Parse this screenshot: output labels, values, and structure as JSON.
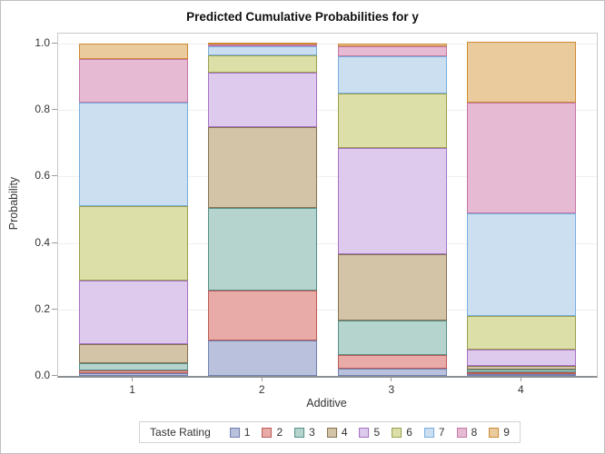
{
  "title": "Predicted Cumulative Probabilities for y",
  "x_axis": {
    "label": "Additive",
    "ticks": [
      "1",
      "2",
      "3",
      "4"
    ]
  },
  "y_axis": {
    "label": "Probability",
    "ticks": [
      "1.0",
      "0.8",
      "0.6",
      "0.4",
      "0.2",
      "0.0"
    ]
  },
  "legend": {
    "title": "Taste Rating"
  },
  "chart_data": {
    "type": "bar",
    "stacked": true,
    "title": "Predicted Cumulative Probabilities for y",
    "xlabel": "Additive",
    "ylabel": "Probability",
    "ylim": [
      0,
      1
    ],
    "grid": true,
    "legend_title": "Taste Rating",
    "legend_position": "bottom",
    "categories": [
      "1",
      "2",
      "3",
      "4"
    ],
    "series": [
      {
        "name": "1",
        "fill": "#B9C1DC",
        "border": "#7281B2",
        "values": [
          0.007,
          0.106,
          0.021,
          0.002
        ]
      },
      {
        "name": "2",
        "fill": "#E9ABA8",
        "border": "#BC5C55",
        "values": [
          0.01,
          0.15,
          0.041,
          0.003
        ]
      },
      {
        "name": "3",
        "fill": "#B6D4CE",
        "border": "#578F88",
        "values": [
          0.021,
          0.25,
          0.104,
          0.007
        ]
      },
      {
        "name": "4",
        "fill": "#D3C3A7",
        "border": "#867352",
        "values": [
          0.059,
          0.244,
          0.201,
          0.011
        ]
      },
      {
        "name": "5",
        "fill": "#DDCAEC",
        "border": "#A672C6",
        "values": [
          0.19,
          0.164,
          0.319,
          0.051
        ]
      },
      {
        "name": "6",
        "fill": "#DCDFA8",
        "border": "#9BA04E",
        "values": [
          0.224,
          0.051,
          0.164,
          0.101
        ]
      },
      {
        "name": "7",
        "fill": "#CBDFF1",
        "border": "#79AEDE",
        "values": [
          0.311,
          0.026,
          0.111,
          0.308
        ]
      },
      {
        "name": "8",
        "fill": "#E6BAD2",
        "border": "#C377A6",
        "values": [
          0.132,
          0.006,
          0.032,
          0.333
        ]
      },
      {
        "name": "9",
        "fill": "#EACB9D",
        "border": "#CE8B33",
        "values": [
          0.046,
          0.003,
          0.007,
          0.184
        ]
      }
    ]
  }
}
